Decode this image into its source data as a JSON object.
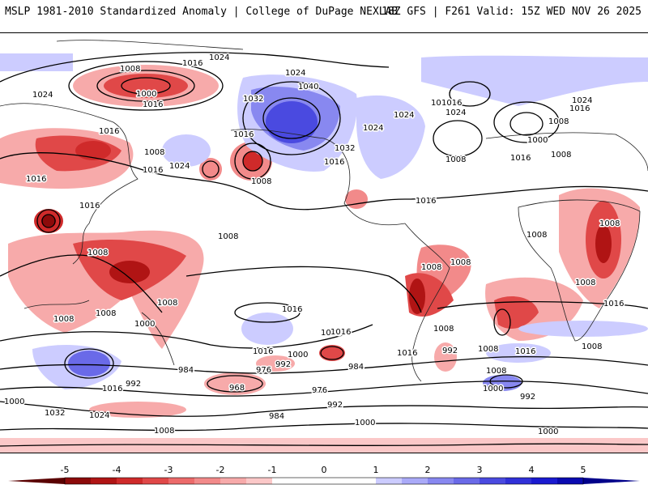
{
  "header": {
    "title": "MSLP 1981-2010 Standardized Anomaly | College of DuPage NEXLAB",
    "run_info": "18Z GFS | F261 Valid: 15Z WED NOV 26 2025"
  },
  "isobar_labels": [
    {
      "id": "i0",
      "text": "1024"
    },
    {
      "id": "i1",
      "text": "1016"
    },
    {
      "id": "i2",
      "text": "1008"
    },
    {
      "id": "i3",
      "text": "1000"
    },
    {
      "id": "i4",
      "text": "1016"
    },
    {
      "id": "i5",
      "text": "1024"
    },
    {
      "id": "i6",
      "text": "1024"
    },
    {
      "id": "i7",
      "text": "1040"
    },
    {
      "id": "i8",
      "text": "1032"
    },
    {
      "id": "i9",
      "text": "1016"
    },
    {
      "id": "i10",
      "text": "1024"
    },
    {
      "id": "i11",
      "text": "1024"
    },
    {
      "id": "i12",
      "text": "1016"
    },
    {
      "id": "i13",
      "text": "1008"
    },
    {
      "id": "i14",
      "text": "1016"
    },
    {
      "id": "i15",
      "text": "1008"
    },
    {
      "id": "i16",
      "text": "1016"
    },
    {
      "id": "i17",
      "text": "1024"
    },
    {
      "id": "i18",
      "text": "1008"
    },
    {
      "id": "i19",
      "text": "1016"
    },
    {
      "id": "i20",
      "text": "1032"
    },
    {
      "id": "i21",
      "text": "1016"
    },
    {
      "id": "i22",
      "text": "1024"
    },
    {
      "id": "i23",
      "text": "1008"
    },
    {
      "id": "i24",
      "text": "1016"
    },
    {
      "id": "i25",
      "text": "1024"
    },
    {
      "id": "i26",
      "text": "1016"
    },
    {
      "id": "i27",
      "text": "1008"
    },
    {
      "id": "i28",
      "text": "1000"
    },
    {
      "id": "i29",
      "text": "1016"
    },
    {
      "id": "i30",
      "text": "1016"
    },
    {
      "id": "i31",
      "text": "1016"
    },
    {
      "id": "i32",
      "text": "1008"
    },
    {
      "id": "i33",
      "text": "1008"
    },
    {
      "id": "i34",
      "text": "1008"
    },
    {
      "id": "i35",
      "text": "1008"
    },
    {
      "id": "i36",
      "text": "1016"
    },
    {
      "id": "i37",
      "text": "1008"
    },
    {
      "id": "i38",
      "text": "1008"
    },
    {
      "id": "i39",
      "text": "1008"
    },
    {
      "id": "i40",
      "text": "1008"
    },
    {
      "id": "i41",
      "text": "1008"
    },
    {
      "id": "i42",
      "text": "1008"
    },
    {
      "id": "i43",
      "text": "1016"
    },
    {
      "id": "i44",
      "text": "1000"
    },
    {
      "id": "i45",
      "text": "1008"
    },
    {
      "id": "i46",
      "text": "1016"
    },
    {
      "id": "i47",
      "text": "1008"
    },
    {
      "id": "i48",
      "text": "1008"
    },
    {
      "id": "i49",
      "text": "1016"
    },
    {
      "id": "i50",
      "text": "1016"
    },
    {
      "id": "i51",
      "text": "1000"
    },
    {
      "id": "i52",
      "text": "992"
    },
    {
      "id": "i53",
      "text": "1016"
    },
    {
      "id": "i54",
      "text": "984"
    },
    {
      "id": "i55",
      "text": "976"
    },
    {
      "id": "i56",
      "text": "968"
    },
    {
      "id": "i57",
      "text": "984"
    },
    {
      "id": "i58",
      "text": "992"
    },
    {
      "id": "i59",
      "text": "992"
    },
    {
      "id": "i60",
      "text": "976"
    },
    {
      "id": "i61",
      "text": "992"
    },
    {
      "id": "i62",
      "text": "984"
    },
    {
      "id": "i63",
      "text": "1000"
    },
    {
      "id": "i64",
      "text": "1008"
    },
    {
      "id": "i65",
      "text": "1016"
    },
    {
      "id": "i66",
      "text": "1000"
    },
    {
      "id": "i67",
      "text": "1032"
    },
    {
      "id": "i68",
      "text": "1024"
    },
    {
      "id": "i69",
      "text": "1008"
    },
    {
      "id": "i70",
      "text": "1000"
    },
    {
      "id": "i71",
      "text": "1000"
    },
    {
      "id": "i72",
      "text": "992"
    },
    {
      "id": "i73",
      "text": "1008"
    }
  ],
  "colorbar": {
    "min": -5,
    "max": 5,
    "ticks": [
      "-5",
      "-4",
      "-3",
      "-2",
      "-1",
      "0",
      "1",
      "2",
      "3",
      "4",
      "5"
    ],
    "colors": [
      "#8c0a0a",
      "#b01414",
      "#cf2a2a",
      "#e04848",
      "#ec6a6a",
      "#f28a8a",
      "#f7aaaa",
      "#fbc8c8",
      "#ffffff",
      "#ffffff",
      "#ffffff",
      "#ffffff",
      "#ccccff",
      "#aaaaf8",
      "#8888f0",
      "#6a6ae8",
      "#4a4ae0",
      "#3030d8",
      "#1a1ad0",
      "#0a0ab0"
    ]
  }
}
